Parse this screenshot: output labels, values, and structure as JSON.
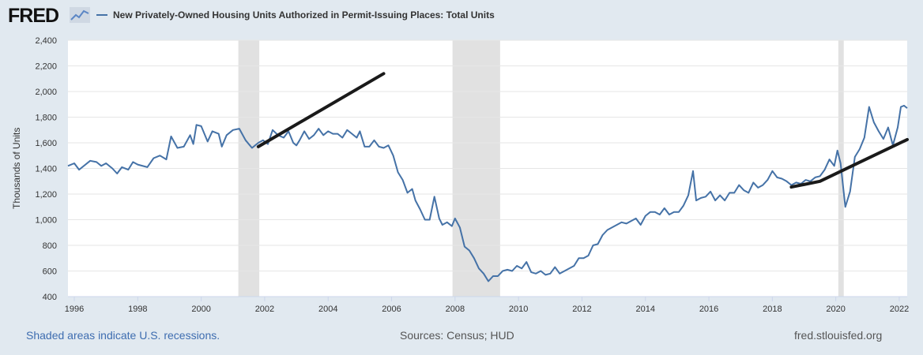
{
  "header": {
    "logo_text": "FRED",
    "logo_icon": "line-chart-icon",
    "legend_label": "New Privately-Owned Housing Units Authorized in Permit-Issuing Places: Total Units",
    "series_color": "#4572a7"
  },
  "footer": {
    "recession_note": "Shaded areas indicate U.S. recessions.",
    "sources": "Sources: Census; HUD",
    "site": "fred.stlouisfed.org"
  },
  "chart_data": {
    "type": "line",
    "title": "New Privately-Owned Housing Units Authorized in Permit-Issuing Places: Total Units",
    "xlabel": "",
    "ylabel": "Thousands of Units",
    "xlim": [
      1995.8,
      2022.25
    ],
    "ylim": [
      400,
      2400
    ],
    "x_ticks": [
      "1996",
      "1998",
      "2000",
      "2002",
      "2004",
      "2006",
      "2008",
      "2010",
      "2012",
      "2014",
      "2016",
      "2018",
      "2020",
      "2022"
    ],
    "y_ticks": [
      "400",
      "600",
      "800",
      "1,000",
      "1,200",
      "1,400",
      "1,600",
      "1,800",
      "2,000",
      "2,200",
      "2,400"
    ],
    "grid": true,
    "recessions": [
      [
        2001.17,
        2001.83
      ],
      [
        2007.92,
        2009.42
      ],
      [
        2020.08,
        2020.25
      ]
    ],
    "series": [
      {
        "name": "Total Units",
        "color": "#4572a7",
        "points": [
          [
            1995.8,
            1420
          ],
          [
            1996.0,
            1440
          ],
          [
            1996.15,
            1390
          ],
          [
            1996.5,
            1460
          ],
          [
            1996.7,
            1450
          ],
          [
            1996.85,
            1420
          ],
          [
            1997.0,
            1440
          ],
          [
            1997.2,
            1400
          ],
          [
            1997.35,
            1360
          ],
          [
            1997.5,
            1410
          ],
          [
            1997.7,
            1390
          ],
          [
            1997.85,
            1450
          ],
          [
            1998.0,
            1430
          ],
          [
            1998.3,
            1410
          ],
          [
            1998.5,
            1480
          ],
          [
            1998.7,
            1500
          ],
          [
            1998.9,
            1470
          ],
          [
            1999.05,
            1650
          ],
          [
            1999.25,
            1560
          ],
          [
            1999.45,
            1570
          ],
          [
            1999.65,
            1660
          ],
          [
            1999.75,
            1590
          ],
          [
            1999.85,
            1740
          ],
          [
            2000.0,
            1730
          ],
          [
            2000.2,
            1610
          ],
          [
            2000.35,
            1690
          ],
          [
            2000.55,
            1670
          ],
          [
            2000.65,
            1570
          ],
          [
            2000.8,
            1660
          ],
          [
            2001.0,
            1700
          ],
          [
            2001.2,
            1710
          ],
          [
            2001.4,
            1620
          ],
          [
            2001.6,
            1560
          ],
          [
            2001.8,
            1600
          ],
          [
            2001.95,
            1620
          ],
          [
            2002.1,
            1590
          ],
          [
            2002.25,
            1700
          ],
          [
            2002.42,
            1660
          ],
          [
            2002.6,
            1640
          ],
          [
            2002.75,
            1690
          ],
          [
            2002.9,
            1600
          ],
          [
            2003.0,
            1580
          ],
          [
            2003.1,
            1620
          ],
          [
            2003.25,
            1690
          ],
          [
            2003.4,
            1630
          ],
          [
            2003.55,
            1660
          ],
          [
            2003.7,
            1710
          ],
          [
            2003.85,
            1660
          ],
          [
            2004.0,
            1690
          ],
          [
            2004.15,
            1670
          ],
          [
            2004.3,
            1670
          ],
          [
            2004.45,
            1640
          ],
          [
            2004.6,
            1700
          ],
          [
            2004.75,
            1670
          ],
          [
            2004.9,
            1640
          ],
          [
            2005.0,
            1690
          ],
          [
            2005.15,
            1570
          ],
          [
            2005.3,
            1570
          ],
          [
            2005.45,
            1620
          ],
          [
            2005.6,
            1570
          ],
          [
            2005.75,
            1560
          ],
          [
            2005.9,
            1580
          ],
          [
            2006.05,
            1500
          ],
          [
            2006.2,
            1370
          ],
          [
            2006.35,
            1310
          ],
          [
            2006.5,
            1210
          ],
          [
            2006.65,
            1240
          ],
          [
            2006.75,
            1150
          ],
          [
            2006.9,
            1080
          ],
          [
            2007.05,
            1000
          ],
          [
            2007.2,
            1000
          ],
          [
            2007.35,
            1180
          ],
          [
            2007.5,
            1010
          ],
          [
            2007.6,
            960
          ],
          [
            2007.75,
            980
          ],
          [
            2007.9,
            950
          ],
          [
            2008.0,
            1010
          ],
          [
            2008.15,
            940
          ],
          [
            2008.3,
            790
          ],
          [
            2008.45,
            760
          ],
          [
            2008.6,
            700
          ],
          [
            2008.75,
            620
          ],
          [
            2008.9,
            580
          ],
          [
            2009.05,
            520
          ],
          [
            2009.2,
            560
          ],
          [
            2009.35,
            560
          ],
          [
            2009.5,
            600
          ],
          [
            2009.65,
            610
          ],
          [
            2009.8,
            600
          ],
          [
            2009.95,
            640
          ],
          [
            2010.1,
            620
          ],
          [
            2010.25,
            670
          ],
          [
            2010.4,
            590
          ],
          [
            2010.55,
            580
          ],
          [
            2010.7,
            600
          ],
          [
            2010.85,
            570
          ],
          [
            2011.0,
            580
          ],
          [
            2011.15,
            630
          ],
          [
            2011.3,
            580
          ],
          [
            2011.45,
            600
          ],
          [
            2011.6,
            620
          ],
          [
            2011.75,
            640
          ],
          [
            2011.9,
            700
          ],
          [
            2012.05,
            700
          ],
          [
            2012.2,
            720
          ],
          [
            2012.35,
            800
          ],
          [
            2012.5,
            810
          ],
          [
            2012.65,
            880
          ],
          [
            2012.8,
            920
          ],
          [
            2012.95,
            940
          ],
          [
            2013.1,
            960
          ],
          [
            2013.25,
            980
          ],
          [
            2013.4,
            970
          ],
          [
            2013.55,
            990
          ],
          [
            2013.7,
            1010
          ],
          [
            2013.85,
            960
          ],
          [
            2014.0,
            1030
          ],
          [
            2014.15,
            1060
          ],
          [
            2014.3,
            1060
          ],
          [
            2014.45,
            1040
          ],
          [
            2014.6,
            1090
          ],
          [
            2014.75,
            1040
          ],
          [
            2014.9,
            1060
          ],
          [
            2015.05,
            1060
          ],
          [
            2015.2,
            1110
          ],
          [
            2015.35,
            1190
          ],
          [
            2015.5,
            1380
          ],
          [
            2015.6,
            1150
          ],
          [
            2015.75,
            1170
          ],
          [
            2015.9,
            1180
          ],
          [
            2016.05,
            1220
          ],
          [
            2016.2,
            1150
          ],
          [
            2016.35,
            1190
          ],
          [
            2016.5,
            1150
          ],
          [
            2016.65,
            1210
          ],
          [
            2016.8,
            1210
          ],
          [
            2016.95,
            1270
          ],
          [
            2017.1,
            1230
          ],
          [
            2017.25,
            1210
          ],
          [
            2017.4,
            1290
          ],
          [
            2017.55,
            1250
          ],
          [
            2017.7,
            1270
          ],
          [
            2017.85,
            1310
          ],
          [
            2018.0,
            1380
          ],
          [
            2018.15,
            1330
          ],
          [
            2018.3,
            1320
          ],
          [
            2018.45,
            1300
          ],
          [
            2018.6,
            1270
          ],
          [
            2018.75,
            1290
          ],
          [
            2018.9,
            1280
          ],
          [
            2019.05,
            1310
          ],
          [
            2019.2,
            1300
          ],
          [
            2019.35,
            1330
          ],
          [
            2019.5,
            1340
          ],
          [
            2019.65,
            1390
          ],
          [
            2019.8,
            1470
          ],
          [
            2019.95,
            1420
          ],
          [
            2020.05,
            1540
          ],
          [
            2020.15,
            1440
          ],
          [
            2020.3,
            1100
          ],
          [
            2020.45,
            1220
          ],
          [
            2020.6,
            1490
          ],
          [
            2020.75,
            1550
          ],
          [
            2020.9,
            1640
          ],
          [
            2021.05,
            1880
          ],
          [
            2021.2,
            1760
          ],
          [
            2021.35,
            1690
          ],
          [
            2021.5,
            1630
          ],
          [
            2021.65,
            1720
          ],
          [
            2021.8,
            1580
          ],
          [
            2021.95,
            1720
          ],
          [
            2022.05,
            1880
          ],
          [
            2022.15,
            1890
          ],
          [
            2022.25,
            1870
          ]
        ]
      }
    ],
    "trend_lines": [
      {
        "name": "trend-2001-2005",
        "color": "#1a1a1a",
        "points": [
          [
            2001.8,
            1570
          ],
          [
            2005.75,
            2140
          ]
        ]
      },
      {
        "name": "trend-2018-2022",
        "color": "#1a1a1a",
        "points": [
          [
            2018.6,
            1255
          ],
          [
            2019.5,
            1300
          ],
          [
            2020.6,
            1430
          ],
          [
            2022.25,
            1625
          ]
        ]
      }
    ]
  }
}
